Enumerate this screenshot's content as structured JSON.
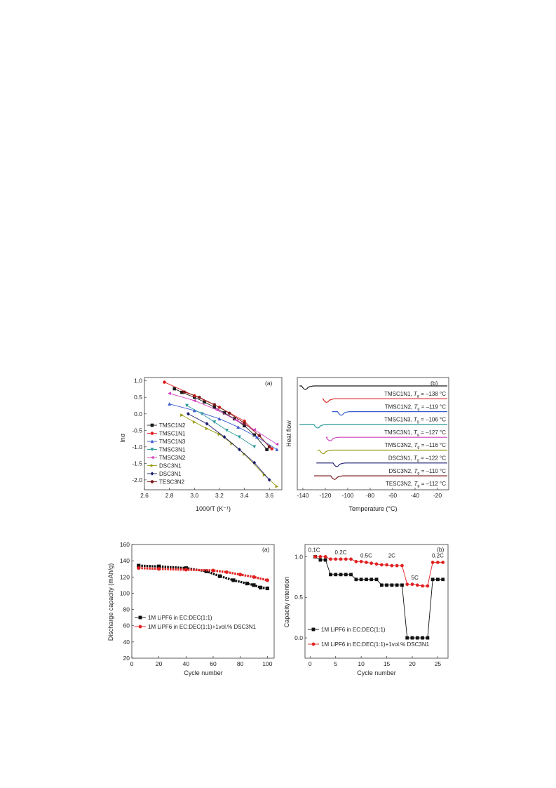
{
  "figure1": {
    "panel_a": {
      "panel_label": "(a)",
      "xlabel": "1000/T (K⁻¹)",
      "ylabel": "lnσ",
      "xticks": [
        "2.6",
        "2.8",
        "3.0",
        "3.2",
        "3.4",
        "3.6"
      ],
      "yticks": [
        "1.0",
        "0.5",
        "0.0",
        "-0.5",
        "-1.0",
        "-1.5",
        "-2.0"
      ],
      "legend": [
        "TMSC1N2",
        "TMSC1N1",
        "TMSC1N3",
        "TMSC3N1",
        "TMSC3N2",
        "DSC3N1",
        "DSC3N1",
        "TESC3N2"
      ]
    },
    "panel_b": {
      "panel_label": "(b)",
      "xlabel": "Temperature (°C)",
      "ylabel": "Heat flow",
      "xticks": [
        "-140",
        "-120",
        "-100",
        "-80",
        "-60",
        "-40",
        "-20"
      ],
      "labels": [
        {
          "name": "TMSC1N1",
          "tg": "–138 °C"
        },
        {
          "name": "TMSC1N2",
          "tg": "–119 °C"
        },
        {
          "name": "TMSC1N3",
          "tg": "–106 °C"
        },
        {
          "name": "TMSC3N1",
          "tg": "–127 °C"
        },
        {
          "name": "TMSC3N2",
          "tg": "–116 °C"
        },
        {
          "name": "DSC3N1",
          "tg": "–122 °C"
        },
        {
          "name": "DSC3N2",
          "tg": "–110 °C"
        },
        {
          "name": "TESC3N2",
          "tg": "–112 °C"
        }
      ]
    }
  },
  "figure2": {
    "panel_a": {
      "panel_label": "(a)",
      "xlabel": "Cycle number",
      "ylabel": "Discharge capacity (mAh/g)",
      "xticks": [
        "0",
        "20",
        "40",
        "60",
        "80",
        "100"
      ],
      "yticks": [
        "160",
        "140",
        "120",
        "100",
        "80",
        "60",
        "40",
        "20"
      ],
      "legend": [
        "1M LiPF6 in EC:DEC(1:1)",
        "1M LiPF6 in EC:DEC(1:1)+1vol.% DSC3N1"
      ]
    },
    "panel_b": {
      "panel_label": "(b)",
      "xlabel": "Cycle number",
      "ylabel": "Capacity retention",
      "xticks": [
        "0",
        "5",
        "10",
        "15",
        "20",
        "25"
      ],
      "yticks": [
        "1.0",
        "0.5",
        "0.0"
      ],
      "rate_labels": [
        "0.1C",
        "0.2C",
        "0.5C",
        "2C",
        "5C",
        "0.2C"
      ],
      "legend": [
        "1M LiPF6  in EC:DEC(1:1)",
        "1M LiPF6 in EC:DEC(1:1)+1vol.% DSC3N1"
      ]
    }
  },
  "chart_data": [
    {
      "type": "line",
      "panel": "(a)",
      "xlabel": "1000/T (K⁻¹)",
      "ylabel": "lnσ",
      "xlim": [
        2.6,
        3.7
      ],
      "ylim": [
        -2.3,
        1.1
      ],
      "series": [
        {
          "name": "TMSC1N2",
          "color": "#1a1a1a",
          "marker": "square",
          "x": [
            2.84,
            2.9,
            3.0,
            3.08,
            3.16,
            3.24,
            3.32,
            3.4,
            3.48,
            3.58
          ],
          "y": [
            0.76,
            0.65,
            0.5,
            0.36,
            0.2,
            0.03,
            -0.15,
            -0.36,
            -0.64,
            -1.08
          ]
        },
        {
          "name": "TMSC1N1",
          "color": "#e02020",
          "marker": "circle",
          "x": [
            2.76,
            3.0,
            3.2,
            3.4,
            3.62
          ],
          "y": [
            0.96,
            0.55,
            0.2,
            -0.22,
            -1.06
          ]
        },
        {
          "name": "TMSC1N3",
          "color": "#3a5bd0",
          "marker": "triangle-up",
          "x": [
            2.8,
            3.0,
            3.2,
            3.35,
            3.5,
            3.66
          ],
          "y": [
            0.3,
            0.1,
            -0.15,
            -0.4,
            -0.7,
            -1.08
          ]
        },
        {
          "name": "TMSC3N1",
          "color": "#2a9a9a",
          "marker": "triangle-down",
          "x": [
            2.94,
            3.06,
            3.16,
            3.26,
            3.36,
            3.48
          ],
          "y": [
            0.25,
            0.0,
            -0.25,
            -0.5,
            -0.7,
            -1.0
          ]
        },
        {
          "name": "TMSC3N2",
          "color": "#d040c0",
          "marker": "triangle-left",
          "x": [
            2.8,
            3.0,
            3.18,
            3.34,
            3.48,
            3.66
          ],
          "y": [
            0.62,
            0.4,
            0.12,
            -0.2,
            -0.48,
            -0.92
          ]
        },
        {
          "name": "DSC3N1",
          "color": "#9a9a18",
          "marker": "triangle-right",
          "x": [
            2.9,
            3.0,
            3.1,
            3.2,
            3.3,
            3.4,
            3.56,
            3.66
          ],
          "y": [
            -0.04,
            -0.25,
            -0.45,
            -0.62,
            -0.9,
            -1.22,
            -1.85,
            -2.2
          ]
        },
        {
          "name": "DSC3N1",
          "color": "#1a1a70",
          "marker": "diamond",
          "x": [
            2.95,
            3.1,
            3.24,
            3.36,
            3.48,
            3.6
          ],
          "y": [
            0.0,
            -0.3,
            -0.7,
            -1.08,
            -1.48,
            -2.0
          ]
        },
        {
          "name": "TESC3N2",
          "color": "#7a1a1a",
          "marker": "circle",
          "x": [
            2.92,
            3.04,
            3.16,
            3.28,
            3.4,
            3.52,
            3.6
          ],
          "y": [
            0.66,
            0.5,
            0.28,
            0.02,
            -0.28,
            -0.66,
            -1.0
          ]
        }
      ],
      "legend_position": "left"
    },
    {
      "type": "line",
      "panel": "(b)",
      "xlabel": "Temperature (°C)",
      "ylabel": "Heat flow",
      "xlim": [
        -145,
        -10
      ],
      "series": [
        {
          "name": "TMSC1N1",
          "color": "#1a1a1a",
          "tg": -138
        },
        {
          "name": "TMSC1N2",
          "color": "#e02020",
          "tg": -119
        },
        {
          "name": "TMSC1N3",
          "color": "#3a5bd0",
          "tg": -106
        },
        {
          "name": "TMSC3N1",
          "color": "#2a9a9a",
          "tg": -127
        },
        {
          "name": "TMSC3N2",
          "color": "#d040c0",
          "tg": -116
        },
        {
          "name": "DSC3N1",
          "color": "#9a9a18",
          "tg": -122
        },
        {
          "name": "DSC3N2",
          "color": "#1a1a70",
          "tg": -110
        },
        {
          "name": "TESC3N2",
          "color": "#7a1a1a",
          "tg": -112
        }
      ]
    },
    {
      "type": "scatter",
      "panel": "(a)",
      "xlabel": "Cycle number",
      "ylabel": "Discharge capacity (mAh/g)",
      "xlim": [
        0,
        105
      ],
      "ylim": [
        20,
        160
      ],
      "series": [
        {
          "name": "1M LiPF6 in EC:DEC(1:1)",
          "color": "#111111",
          "marker": "square",
          "x": [
            5,
            20,
            40,
            55,
            65,
            75,
            85,
            90,
            95,
            100
          ],
          "y": [
            134,
            133,
            131,
            127,
            121,
            116,
            112,
            110,
            107,
            106
          ]
        },
        {
          "name": "1M LiPF6 in EC:DEC(1:1)+1vol.% DSC3N1",
          "color": "#e02020",
          "marker": "circle",
          "x": [
            5,
            20,
            40,
            60,
            70,
            80,
            90,
            100
          ],
          "y": [
            131,
            130,
            129,
            128,
            126,
            123,
            120,
            116
          ]
        }
      ],
      "legend_position": "lower-left"
    },
    {
      "type": "scatter",
      "panel": "(b)",
      "xlabel": "Cycle number",
      "ylabel": "Capacity retention",
      "xlim": [
        -1,
        27
      ],
      "ylim": [
        -0.25,
        1.15
      ],
      "annotations": [
        "0.1C",
        "0.2C",
        "0.5C",
        "2C",
        "5C",
        "0.2C"
      ],
      "series": [
        {
          "name": "1M LiPF6 in EC:DEC(1:1)",
          "color": "#111111",
          "marker": "square",
          "x": [
            1,
            2,
            3,
            4,
            5,
            6,
            7,
            8,
            9,
            10,
            11,
            12,
            13,
            14,
            15,
            16,
            17,
            18,
            19,
            20,
            21,
            22,
            23,
            24,
            25,
            26
          ],
          "y": [
            1.0,
            0.96,
            0.96,
            0.78,
            0.78,
            0.78,
            0.78,
            0.78,
            0.72,
            0.72,
            0.72,
            0.72,
            0.72,
            0.65,
            0.65,
            0.65,
            0.65,
            0.65,
            0.0,
            0.0,
            0.0,
            0.0,
            0.0,
            0.72,
            0.72,
            0.72
          ]
        },
        {
          "name": "1M LiPF6 in EC:DEC(1:1)+1vol.% DSC3N1",
          "color": "#e02020",
          "marker": "circle",
          "x": [
            1,
            2,
            3,
            4,
            5,
            6,
            7,
            8,
            9,
            10,
            11,
            12,
            13,
            14,
            15,
            16,
            17,
            18,
            19,
            20,
            21,
            22,
            23,
            24,
            25,
            26
          ],
          "y": [
            1.0,
            1.0,
            1.0,
            0.97,
            0.97,
            0.97,
            0.97,
            0.97,
            0.94,
            0.94,
            0.93,
            0.92,
            0.91,
            0.9,
            0.9,
            0.89,
            0.89,
            0.89,
            0.66,
            0.66,
            0.65,
            0.64,
            0.64,
            0.93,
            0.93,
            0.93
          ]
        }
      ],
      "legend_position": "lower-left"
    }
  ]
}
